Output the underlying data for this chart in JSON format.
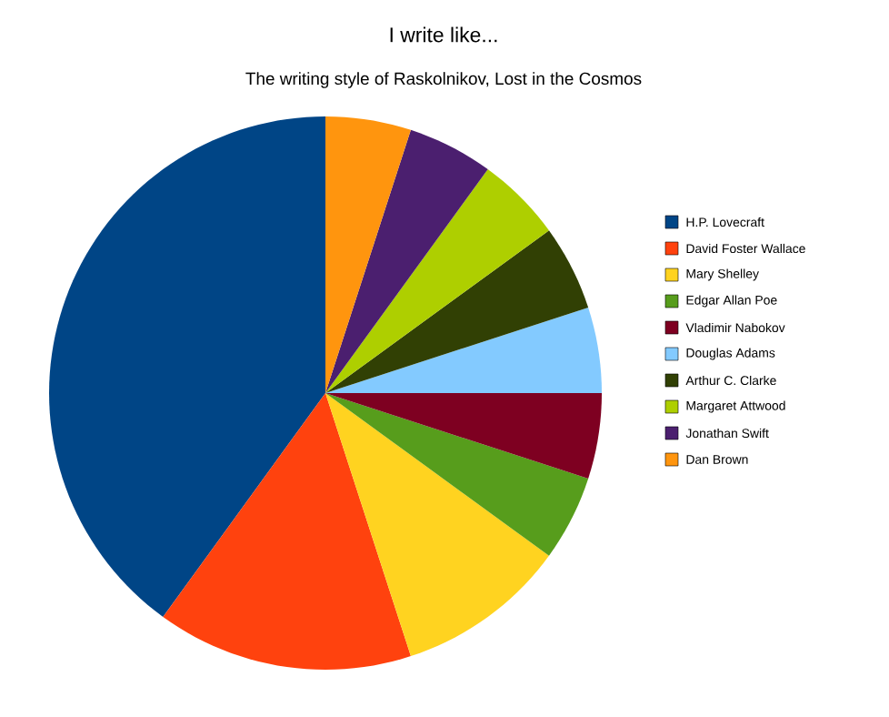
{
  "chart_data": {
    "type": "pie",
    "title": "I write like...",
    "subtitle": "The writing style of Raskolnikov, Lost in the Cosmos",
    "categories": [
      "H.P. Lovecraft",
      "David Foster Wallace",
      "Mary Shelley",
      "Edgar Allan Poe",
      "Vladimir Nabokov",
      "Douglas Adams",
      "Arthur C. Clarke",
      "Margaret Attwood",
      "Jonathan Swift",
      "Dan Brown"
    ],
    "values": [
      40,
      15,
      10,
      5,
      5,
      5,
      5,
      5,
      5,
      5
    ],
    "colors": [
      "#004586",
      "#ff420e",
      "#ffd320",
      "#579d1c",
      "#7e0021",
      "#83caff",
      "#314004",
      "#aecf00",
      "#4b1f6f",
      "#ff950e"
    ],
    "legend": "right"
  }
}
